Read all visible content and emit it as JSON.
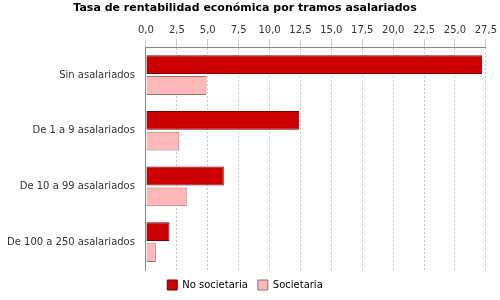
{
  "chart_data": {
    "type": "bar",
    "orientation": "horizontal",
    "title": "Tasa de rentabilidad económica por tramos asalariados",
    "categories": [
      "Sin asalariados",
      "De 1 a 9 asalariados",
      "De 10 a 99 asalariados",
      "De 100 a 250 asalariados"
    ],
    "series": [
      {
        "name": "No societaria",
        "color": "#cc0000",
        "values": [
          27.2,
          12.4,
          6.3,
          1.9
        ]
      },
      {
        "name": "Societaria",
        "color": "#ffb8b8",
        "values": [
          4.9,
          2.7,
          3.3,
          0.8
        ]
      }
    ],
    "xlim": [
      0,
      27.5
    ],
    "xticks": [
      {
        "value": 0,
        "label": "0,0"
      },
      {
        "value": 2.5,
        "label": "2,5"
      },
      {
        "value": 5,
        "label": "5,0"
      },
      {
        "value": 7.5,
        "label": "7,5"
      },
      {
        "value": 10,
        "label": "10,0"
      },
      {
        "value": 12.5,
        "label": "12,5"
      },
      {
        "value": 15,
        "label": "15,0"
      },
      {
        "value": 17.5,
        "label": "17,5"
      },
      {
        "value": 20,
        "label": "20,0"
      },
      {
        "value": 22.5,
        "label": "22,5"
      },
      {
        "value": 25,
        "label": "25,0"
      },
      {
        "value": 27.5,
        "label": "27,5"
      }
    ],
    "grid": true,
    "legend": "bottom"
  }
}
